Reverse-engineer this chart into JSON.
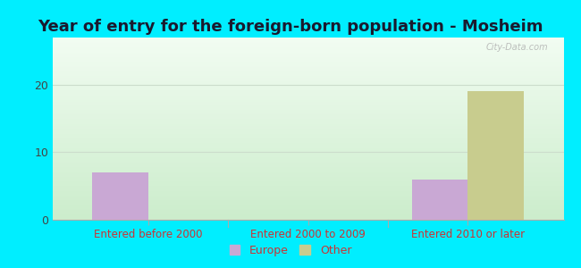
{
  "title": "Year of entry for the foreign-born population - Mosheim",
  "categories": [
    "Entered before 2000",
    "Entered 2000 to 2009",
    "Entered 2010 or later"
  ],
  "europe_values": [
    7,
    0,
    6
  ],
  "other_values": [
    0,
    0,
    19
  ],
  "europe_color": "#c9a8d4",
  "other_color": "#c8cc8e",
  "background_outer": "#00eeff",
  "ylim": [
    0,
    27
  ],
  "yticks": [
    0,
    10,
    20
  ],
  "bar_width": 0.35,
  "title_fontsize": 13,
  "title_color": "#1a1a2e",
  "tick_label_color": "#cc3333",
  "grid_color": "#ccddcc",
  "legend_europe": "Europe",
  "legend_other": "Other",
  "watermark": "City-Data.com",
  "xlim": [
    -0.6,
    2.6
  ]
}
